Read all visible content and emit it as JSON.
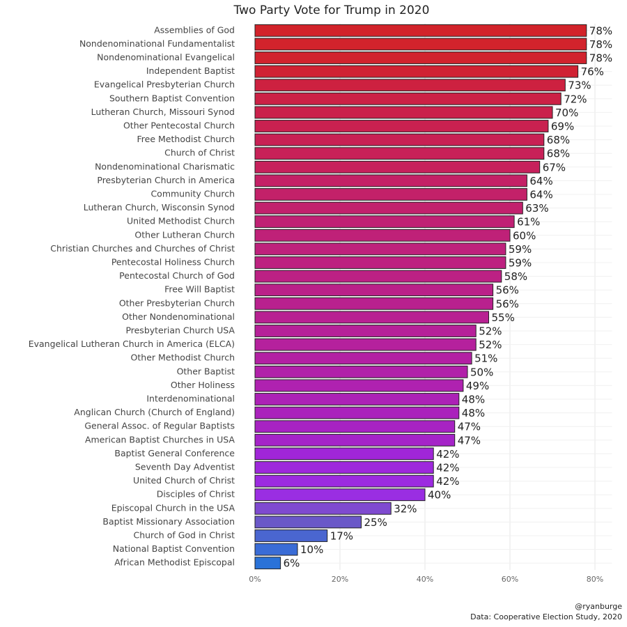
{
  "chart_data": {
    "type": "hbar",
    "title": "Two Party Vote for Trump in 2020",
    "categories": [
      "Assemblies of God",
      "Nondenominational Fundamentalist",
      "Nondenominational Evangelical",
      "Independent Baptist",
      "Evangelical Presbyterian Church",
      "Southern Baptist Convention",
      "Lutheran Church, Missouri Synod",
      "Other Pentecostal Church",
      "Free Methodist Church",
      "Church of Christ",
      "Nondenominational Charismatic",
      "Presbyterian Church in America",
      "Community Church",
      "Lutheran Church, Wisconsin Synod",
      "United Methodist Church",
      "Other Lutheran Church",
      "Christian Churches and Churches of Christ",
      "Pentecostal Holiness Church",
      "Pentecostal Church of God",
      "Free Will Baptist",
      "Other Presbyterian Church",
      "Other Nondenominational",
      "Presbyterian Church USA",
      "Evangelical Lutheran Church in America (ELCA)",
      "Other Methodist Church",
      "Other Baptist",
      "Other Holiness",
      "Interdenominational",
      "Anglican Church (Church of England)",
      "General Assoc. of Regular Baptists",
      "American Baptist Churches in USA",
      "Baptist General Conference",
      "Seventh Day Adventist",
      "United Church of Christ",
      "Disciples of Christ",
      "Episcopal Church in the USA",
      "Baptist Missionary Association",
      "Church of God in Christ",
      "National Baptist Convention",
      "African Methodist Episcopal"
    ],
    "values": [
      78,
      78,
      78,
      76,
      73,
      72,
      70,
      69,
      68,
      68,
      67,
      64,
      64,
      63,
      61,
      60,
      59,
      59,
      58,
      56,
      56,
      55,
      52,
      52,
      51,
      50,
      49,
      48,
      48,
      47,
      47,
      42,
      42,
      42,
      40,
      32,
      25,
      17,
      10,
      6
    ],
    "value_labels": [
      "78%",
      "78%",
      "78%",
      "76%",
      "73%",
      "72%",
      "70%",
      "69%",
      "68%",
      "68%",
      "67%",
      "64%",
      "64%",
      "63%",
      "61%",
      "60%",
      "59%",
      "59%",
      "58%",
      "56%",
      "56%",
      "55%",
      "52%",
      "52%",
      "51%",
      "50%",
      "49%",
      "48%",
      "48%",
      "47%",
      "47%",
      "42%",
      "42%",
      "42%",
      "40%",
      "32%",
      "25%",
      "17%",
      "10%",
      "6%"
    ],
    "colors": [
      "#d2232a",
      "#d2232c",
      "#d1232e",
      "#d02233",
      "#cd2140",
      "#cc2145",
      "#ca214b",
      "#c92150",
      "#c82154",
      "#c82158",
      "#c7215c",
      "#c42166",
      "#c32169",
      "#c2216d",
      "#c02174",
      "#bf2178",
      "#be217c",
      "#bd2180",
      "#bc2184",
      "#ba2189",
      "#b9218e",
      "#b82192",
      "#b62199",
      "#b5219d",
      "#b321a3",
      "#b121a9",
      "#af22b0",
      "#ac22b6",
      "#aa22bc",
      "#a723c2",
      "#a524c8",
      "#a026d8",
      "#9e28dc",
      "#9c2be0",
      "#9a2ee2",
      "#7f4ad0",
      "#6a58c8",
      "#4a66d0",
      "#3a6cd6",
      "#2a72d8"
    ],
    "xlim": [
      0,
      84
    ],
    "xticks": [
      {
        "value": 0,
        "label": "0%"
      },
      {
        "value": 20,
        "label": "20%"
      },
      {
        "value": 40,
        "label": "40%"
      },
      {
        "value": 60,
        "label": "60%"
      },
      {
        "value": 80,
        "label": "80%"
      }
    ],
    "grid": true,
    "caption": [
      "@ryanburge",
      "Data: Cooperative Election Study, 2020"
    ]
  }
}
